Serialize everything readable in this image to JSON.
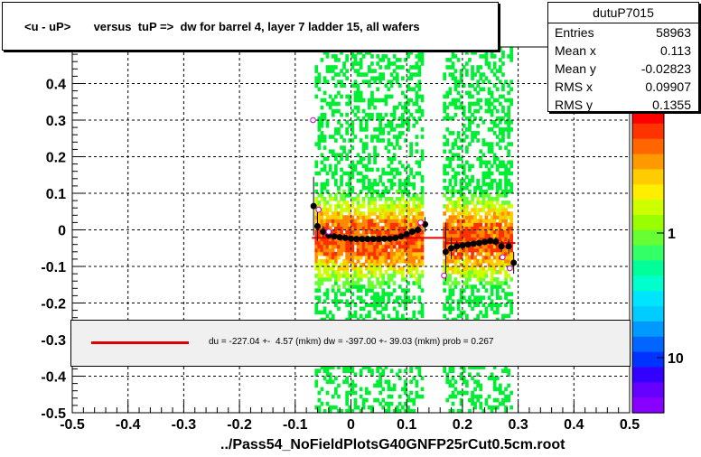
{
  "chart_data": {
    "type": "scatter",
    "title": "<u - uP>       versus  tuP =>  dw for barrel 4, layer 7 ladder 15, all wafers",
    "xlabel": "../Pass54_NoFieldPlotsG40GNFP25rCut0.5cm.root",
    "ylabel": "",
    "xlim": [
      -0.5,
      0.5
    ],
    "ylim": [
      -0.5,
      0.5
    ],
    "x_ticks": [
      "-0.5",
      "-0.4",
      "-0.3",
      "-0.2",
      "-0.1",
      "0",
      "0.1",
      "0.2",
      "0.3",
      "0.4",
      "0.5"
    ],
    "y_ticks": [
      "-0.5",
      "-0.4",
      "-0.3",
      "-0.2",
      "-0.1",
      "0",
      "0.1",
      "0.2",
      "0.3",
      "0.4"
    ],
    "palette_ticks": [
      "10",
      "1",
      "10"
    ],
    "grid": true,
    "histogram_bands": [
      {
        "x_from": -0.065,
        "x_to": 0.13
      },
      {
        "x_from": 0.165,
        "x_to": 0.29
      }
    ],
    "profile_points": [
      {
        "x": -0.067,
        "y": 0.065,
        "err": 0.08
      },
      {
        "x": -0.06,
        "y": 0.01,
        "err": 0.04
      },
      {
        "x": -0.05,
        "y": -0.005,
        "err": 0.015
      },
      {
        "x": -0.04,
        "y": -0.015,
        "err": 0.01
      },
      {
        "x": -0.03,
        "y": -0.018,
        "err": 0.008
      },
      {
        "x": -0.02,
        "y": -0.02,
        "err": 0.006
      },
      {
        "x": -0.01,
        "y": -0.022,
        "err": 0.005
      },
      {
        "x": 0.0,
        "y": -0.024,
        "err": 0.005
      },
      {
        "x": 0.01,
        "y": -0.025,
        "err": 0.005
      },
      {
        "x": 0.02,
        "y": -0.025,
        "err": 0.005
      },
      {
        "x": 0.03,
        "y": -0.025,
        "err": 0.005
      },
      {
        "x": 0.04,
        "y": -0.025,
        "err": 0.005
      },
      {
        "x": 0.05,
        "y": -0.025,
        "err": 0.005
      },
      {
        "x": 0.06,
        "y": -0.024,
        "err": 0.005
      },
      {
        "x": 0.07,
        "y": -0.024,
        "err": 0.005
      },
      {
        "x": 0.08,
        "y": -0.022,
        "err": 0.005
      },
      {
        "x": 0.09,
        "y": -0.018,
        "err": 0.006
      },
      {
        "x": 0.1,
        "y": -0.012,
        "err": 0.007
      },
      {
        "x": 0.11,
        "y": -0.005,
        "err": 0.008
      },
      {
        "x": 0.12,
        "y": 0.0,
        "err": 0.01
      },
      {
        "x": 0.133,
        "y": 0.015,
        "err": 0.02
      },
      {
        "x": 0.17,
        "y": -0.06,
        "err": 0.08
      },
      {
        "x": 0.18,
        "y": -0.05,
        "err": 0.03
      },
      {
        "x": 0.19,
        "y": -0.045,
        "err": 0.015
      },
      {
        "x": 0.2,
        "y": -0.043,
        "err": 0.01
      },
      {
        "x": 0.21,
        "y": -0.04,
        "err": 0.008
      },
      {
        "x": 0.22,
        "y": -0.038,
        "err": 0.008
      },
      {
        "x": 0.23,
        "y": -0.036,
        "err": 0.008
      },
      {
        "x": 0.24,
        "y": -0.033,
        "err": 0.008
      },
      {
        "x": 0.25,
        "y": -0.03,
        "err": 0.01
      },
      {
        "x": 0.26,
        "y": -0.032,
        "err": 0.012
      },
      {
        "x": 0.27,
        "y": -0.045,
        "err": 0.015
      },
      {
        "x": 0.283,
        "y": -0.045,
        "err": 0.02
      },
      {
        "x": 0.292,
        "y": -0.09,
        "err": 0.03
      }
    ],
    "open_markers": [
      {
        "x": -0.068,
        "y": 0.3
      },
      {
        "x": -0.058,
        "y": 0.055
      },
      {
        "x": -0.04,
        "y": -0.005
      },
      {
        "x": 0.125,
        "y": 0.02
      },
      {
        "x": 0.167,
        "y": -0.125
      },
      {
        "x": 0.272,
        "y": -0.075
      },
      {
        "x": 0.285,
        "y": -0.105
      }
    ],
    "fit_segments": [
      {
        "x_from": -0.07,
        "x_to": 0.17,
        "y": -0.022
      },
      {
        "x_from": 0.17,
        "x_to": 0.295,
        "y": -0.036
      }
    ],
    "colors": {
      "fit": "#e00000",
      "markers": "#000000",
      "open_markers": "#cc00cc",
      "grid": "#000000"
    }
  },
  "title_box": {
    "text": "<u - uP>       versus  tuP =>  dw for barrel 4, layer 7 ladder 15, all wafers"
  },
  "stats": {
    "name": "dutuP7015",
    "rows": [
      {
        "label": "Entries",
        "value": "58963"
      },
      {
        "label": "Mean x",
        "value": "0.113"
      },
      {
        "label": "Mean y",
        "value": "-0.02823"
      },
      {
        "label": "RMS x",
        "value": "0.09907"
      },
      {
        "label": "RMS y",
        "value": "0.1355"
      }
    ]
  },
  "legend": {
    "text": "du = -227.04 +-  4.57 (mkm) dw = -397.00 +- 39.03 (mkm) prob = 0.267"
  }
}
